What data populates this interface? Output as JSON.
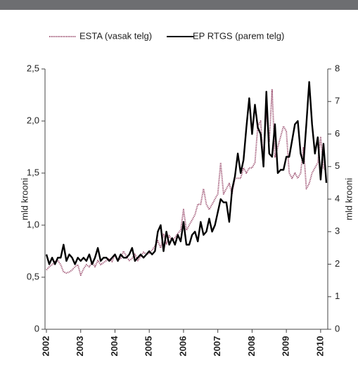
{
  "chart_data": {
    "type": "line",
    "categories": [
      "2002",
      null,
      null,
      null,
      null,
      null,
      null,
      null,
      null,
      null,
      null,
      null,
      "2003",
      null,
      null,
      null,
      null,
      null,
      null,
      null,
      null,
      null,
      null,
      null,
      "2004",
      null,
      null,
      null,
      null,
      null,
      null,
      null,
      null,
      null,
      null,
      null,
      "2005",
      null,
      null,
      null,
      null,
      null,
      null,
      null,
      null,
      null,
      null,
      null,
      "2006",
      null,
      null,
      null,
      null,
      null,
      null,
      null,
      null,
      null,
      null,
      null,
      "2007",
      null,
      null,
      null,
      null,
      null,
      null,
      null,
      null,
      null,
      null,
      null,
      "2008",
      null,
      null,
      null,
      null,
      null,
      null,
      null,
      null,
      null,
      null,
      null,
      "2009",
      null,
      null,
      null,
      null,
      null,
      null,
      null,
      null,
      null,
      null,
      null,
      "2010",
      null,
      null
    ],
    "series": [
      {
        "name": "ESTA (vasak telg)",
        "color": "#9b4d6e",
        "linestyle": "dotted",
        "axis": "y",
        "values": [
          0.57,
          0.6,
          0.62,
          0.65,
          0.66,
          0.62,
          0.55,
          0.54,
          0.55,
          0.57,
          0.6,
          0.62,
          0.52,
          0.58,
          0.62,
          0.6,
          0.64,
          0.6,
          0.66,
          0.62,
          0.64,
          0.66,
          0.68,
          0.65,
          0.72,
          0.66,
          0.68,
          0.75,
          0.7,
          0.66,
          0.68,
          0.72,
          0.66,
          0.7,
          0.74,
          0.72,
          0.73,
          0.76,
          0.8,
          0.85,
          0.78,
          0.92,
          0.82,
          0.9,
          0.85,
          0.88,
          0.92,
          0.95,
          1.15,
          0.95,
          1.0,
          1.05,
          1.1,
          1.2,
          1.2,
          1.35,
          1.2,
          1.15,
          1.2,
          1.25,
          1.3,
          1.6,
          1.3,
          1.35,
          1.4,
          1.3,
          1.45,
          1.45,
          1.45,
          1.55,
          1.5,
          1.55,
          1.55,
          1.6,
          1.95,
          2.0,
          1.6,
          2.1,
          1.8,
          2.3,
          1.65,
          1.75,
          1.85,
          1.95,
          1.9,
          1.5,
          1.45,
          1.5,
          1.45,
          1.5,
          1.75,
          1.35,
          1.4,
          1.5,
          1.55,
          1.6,
          1.85,
          1.55,
          1.52
        ]
      },
      {
        "name": "EP RTGS (parem telg)",
        "color": "#000000",
        "linestyle": "solid",
        "axis": "y2",
        "values": [
          2.3,
          2.0,
          2.2,
          2.0,
          2.2,
          2.2,
          2.6,
          2.1,
          2.3,
          2.2,
          2.0,
          2.2,
          2.1,
          2.2,
          2.1,
          2.3,
          2.0,
          2.2,
          2.5,
          2.1,
          2.2,
          2.2,
          2.1,
          2.2,
          2.3,
          2.1,
          2.3,
          2.2,
          2.2,
          2.3,
          2.5,
          2.1,
          2.2,
          2.3,
          2.2,
          2.3,
          2.4,
          2.3,
          2.4,
          3.0,
          3.2,
          2.4,
          3.0,
          2.6,
          2.8,
          2.6,
          2.9,
          2.7,
          3.3,
          2.6,
          2.6,
          2.9,
          3.0,
          2.7,
          3.3,
          2.9,
          3.0,
          3.4,
          3.0,
          3.2,
          3.6,
          4.0,
          3.9,
          3.9,
          3.3,
          4.3,
          4.7,
          5.4,
          4.8,
          5.2,
          6.2,
          7.1,
          6.0,
          6.9,
          6.2,
          6.0,
          5.0,
          7.3,
          5.4,
          5.3,
          6.3,
          4.8,
          4.9,
          4.9,
          5.3,
          5.3,
          5.8,
          6.3,
          6.4,
          5.4,
          5.1,
          6.3,
          7.6,
          6.3,
          5.4,
          5.9,
          4.6,
          5.7,
          4.5
        ]
      }
    ],
    "ylabel": "mld krooni",
    "y2label": "mld krooni",
    "ylim": [
      0,
      2.5
    ],
    "yticks": [
      0,
      {
        "value": 0.5,
        "label": "0,5"
      },
      {
        "value": 1,
        "label": "1,0"
      },
      {
        "value": 1.5,
        "label": "1,5"
      },
      {
        "value": 2,
        "label": "2,0"
      },
      {
        "value": 2.5,
        "label": "2,5"
      }
    ],
    "y2lim": [
      0,
      8
    ],
    "y2ticks": [
      0,
      1,
      2,
      3,
      4,
      5,
      6,
      7,
      8
    ],
    "grid": false,
    "legend": "top"
  }
}
